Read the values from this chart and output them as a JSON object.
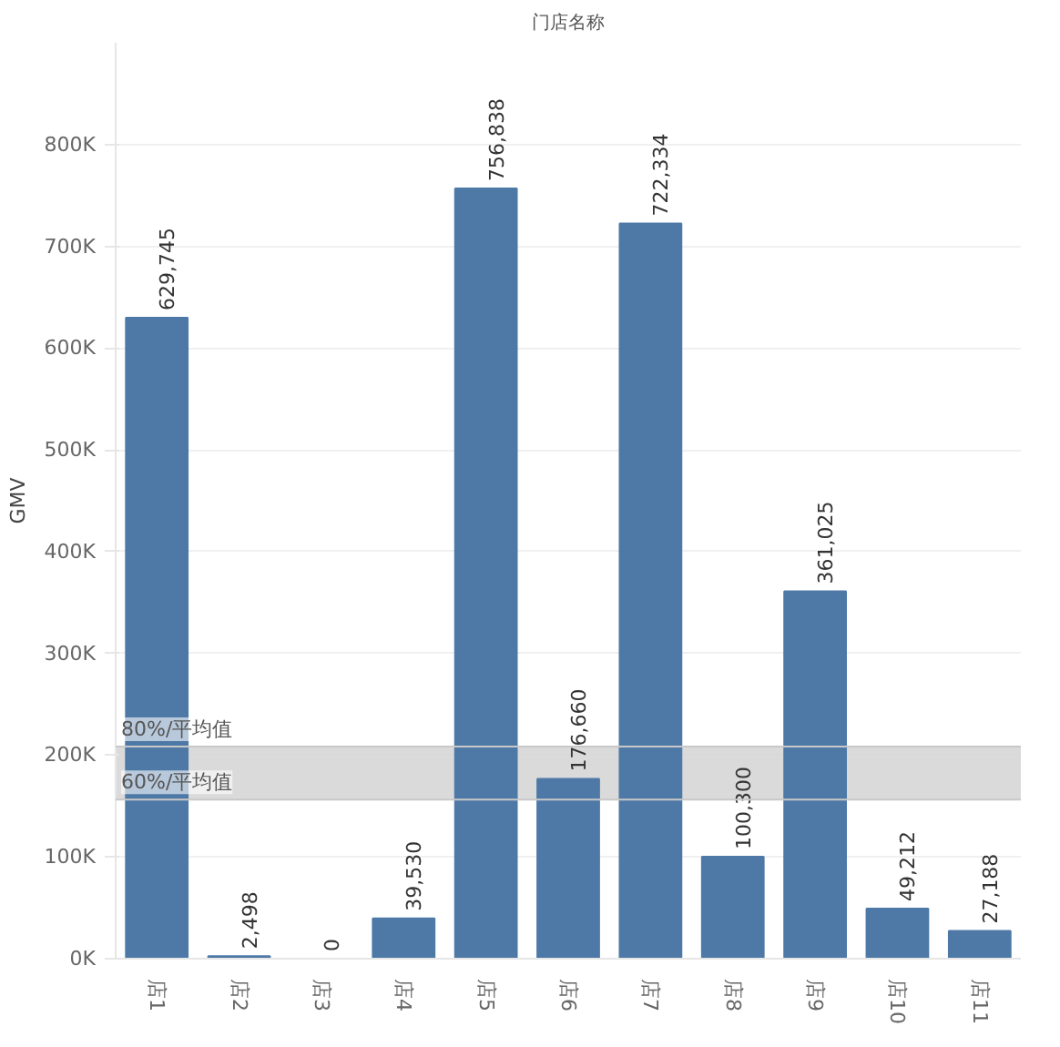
{
  "chart_data": {
    "type": "bar",
    "title": "门店名称",
    "ylabel": "GMV",
    "categories": [
      "店1",
      "店2",
      "店3",
      "店4",
      "店5",
      "店6",
      "店7",
      "店8",
      "店9",
      "店10",
      "店11"
    ],
    "values": [
      629745,
      2498,
      0,
      39530,
      756838,
      176660,
      722334,
      100300,
      361025,
      49212,
      27188
    ],
    "value_labels": [
      "629,745",
      "2,498",
      "0",
      "39,530",
      "756,838",
      "176,660",
      "722,334",
      "100,300",
      "361,025",
      "49,212",
      "27,188"
    ],
    "color": "#4e79a7",
    "ylim": [
      0,
      900000
    ],
    "yticks": [
      {
        "value": 0,
        "label": "0K"
      },
      {
        "value": 100000,
        "label": "100K"
      },
      {
        "value": 200000,
        "label": "200K"
      },
      {
        "value": 300000,
        "label": "300K"
      },
      {
        "value": 400000,
        "label": "400K"
      },
      {
        "value": 500000,
        "label": "500K"
      },
      {
        "value": 600000,
        "label": "600K"
      },
      {
        "value": 700000,
        "label": "700K"
      },
      {
        "value": 800000,
        "label": "800K"
      }
    ],
    "grid": "y",
    "bands": [
      {
        "axis": "y",
        "from": 156291,
        "to": 208388,
        "color": "#d4d4d4"
      }
    ],
    "ref_lines": [
      {
        "axis": "y",
        "value": 208388,
        "label": "80%/平均值",
        "color": "#c8c8c8"
      },
      {
        "axis": "y",
        "value": 156291,
        "label": "60%/平均值",
        "color": "#c8c8c8"
      }
    ]
  }
}
